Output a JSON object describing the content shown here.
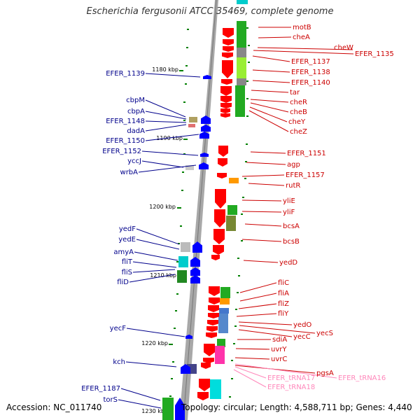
{
  "title": "Escherichia fergusonii ATCC 35469, complete genome",
  "footer": {
    "accession": "Accession: NC_011740",
    "topology": "Topology: circular; Length: 4,588,711 bp; Genes: 4,440"
  },
  "colors": {
    "backbone": "#a8a8a8",
    "reverse_gene": "#ff0000",
    "forward_gene": "#0000ff",
    "left_label": "#00008b",
    "right_label": "#cc0000",
    "trna_label": "#ff88bb",
    "tick": "#008000"
  },
  "ticks": [
    {
      "label": "1180 kbp"
    },
    {
      "label": "1190 kbp"
    },
    {
      "label": "1200 kbp"
    },
    {
      "label": "1210 kbp"
    },
    {
      "label": "1220 kbp"
    },
    {
      "label": "1230 kbp"
    }
  ],
  "left_labels": [
    "EFER_1139",
    "cbpM",
    "cbpA",
    "EFER_1148",
    "dadA",
    "EFER_1150",
    "EFER_1152",
    "yccJ",
    "wrbA",
    "yedF",
    "yedE",
    "amyA",
    "fliT",
    "fliS",
    "fliD",
    "yecF",
    "kch",
    "EFER_1187",
    "torS"
  ],
  "right_labels": [
    "motB",
    "cheA",
    "cheW",
    "EFER_1135",
    "EFER_1137",
    "EFER_1138",
    "EFER_1140",
    "tar",
    "cheR",
    "cheB",
    "cheY",
    "cheZ",
    "EFER_1151",
    "agp",
    "EFER_1157",
    "rutR",
    "yliE",
    "yliF",
    "bcsA",
    "bcsB",
    "yedD",
    "fliC",
    "fliA",
    "fliZ",
    "fliY",
    "yedO",
    "yecS",
    "yecC",
    "sdiA",
    "uvrY",
    "uvrC",
    "pgsA"
  ],
  "trna_labels": [
    "EFER_tRNA16",
    "EFER_tRNA17",
    "EFER_tRNA18"
  ]
}
